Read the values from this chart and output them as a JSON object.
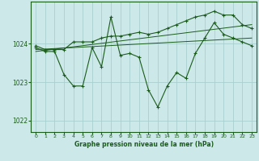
{
  "title": "Graphe pression niveau de la mer (hPa)",
  "background_color": "#cce8e8",
  "grid_color": "#aacfcf",
  "line_color": "#1a5c1a",
  "xlim": [
    -0.5,
    23.5
  ],
  "ylim": [
    1021.7,
    1025.1
  ],
  "yticks": [
    1022,
    1023,
    1024
  ],
  "xticks": [
    0,
    1,
    2,
    3,
    4,
    5,
    6,
    7,
    8,
    9,
    10,
    11,
    12,
    13,
    14,
    15,
    16,
    17,
    18,
    19,
    20,
    21,
    22,
    23
  ],
  "series1_x": [
    0,
    1,
    2,
    3,
    4,
    5,
    6,
    7,
    8,
    9,
    10,
    11,
    12,
    13,
    14,
    15,
    16,
    17,
    18,
    19,
    20,
    21,
    22,
    23
  ],
  "series1_y": [
    1023.9,
    1023.8,
    1023.8,
    1023.2,
    1022.9,
    1022.9,
    1023.9,
    1023.4,
    1024.7,
    1023.7,
    1023.75,
    1023.65,
    1022.8,
    1022.35,
    1022.9,
    1023.25,
    1023.1,
    1023.75,
    1024.15,
    1024.55,
    1024.25,
    1024.15,
    1024.05,
    1023.95
  ],
  "series2_x": [
    0,
    1,
    2,
    3,
    4,
    5,
    6,
    7,
    8,
    9,
    10,
    11,
    12,
    13,
    14,
    15,
    16,
    17,
    18,
    19,
    20,
    21,
    22,
    23
  ],
  "series2_y": [
    1023.95,
    1023.85,
    1023.85,
    1023.85,
    1024.05,
    1024.05,
    1024.05,
    1024.15,
    1024.2,
    1024.2,
    1024.25,
    1024.3,
    1024.25,
    1024.3,
    1024.4,
    1024.5,
    1024.6,
    1024.7,
    1024.75,
    1024.85,
    1024.75,
    1024.75,
    1024.5,
    1024.4
  ],
  "trend1_x": [
    0,
    23
  ],
  "trend1_y": [
    1023.85,
    1024.15
  ],
  "trend2_x": [
    0,
    23
  ],
  "trend2_y": [
    1023.8,
    1024.5
  ]
}
